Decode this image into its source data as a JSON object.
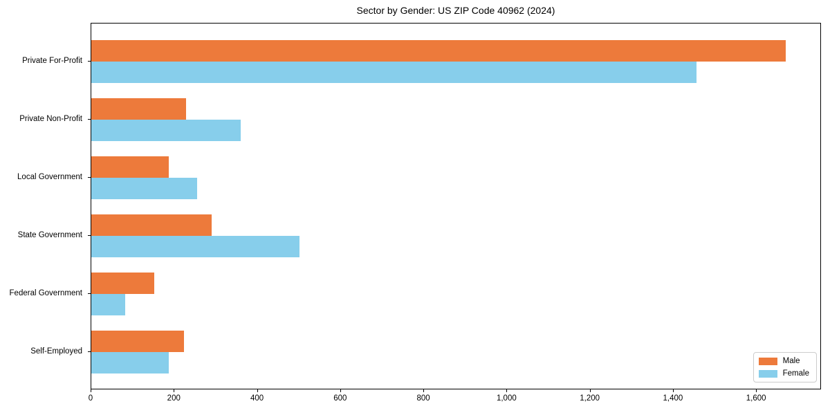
{
  "chart_data": {
    "type": "bar",
    "orientation": "horizontal",
    "title": "Sector by Gender: US ZIP Code 40962 (2024)",
    "categories": [
      "Private For-Profit",
      "Private Non-Profit",
      "Local Government",
      "State Government",
      "Federal Government",
      "Self-Employed"
    ],
    "series": [
      {
        "name": "Male",
        "color": "#ED7A3B",
        "values": [
          1670,
          227,
          187,
          289,
          151,
          223
        ]
      },
      {
        "name": "Female",
        "color": "#87CEEB",
        "values": [
          1455,
          359,
          255,
          501,
          82,
          187
        ]
      }
    ],
    "xlabel": "",
    "ylabel": "",
    "xlim": [
      0,
      1756
    ],
    "xticks": [
      0,
      200,
      400,
      600,
      800,
      1000,
      1200,
      1400,
      1600
    ],
    "xtick_labels": [
      "0",
      "200",
      "400",
      "600",
      "800",
      "1,000",
      "1,200",
      "1,400",
      "1,600"
    ],
    "grid": false,
    "legend_position": "lower right",
    "background_color": "#ffffff",
    "axis_color": "#000000"
  }
}
